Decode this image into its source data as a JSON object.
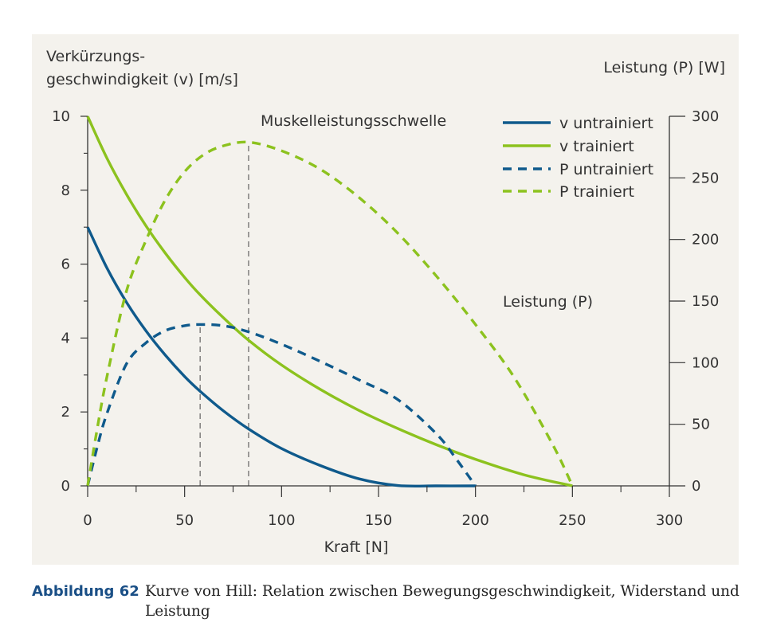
{
  "colors": {
    "untrained": "#0f5a8c",
    "trained": "#8cc21e",
    "axis": "#333333",
    "background": "#f4f2ed",
    "caption_label": "#1a4f86"
  },
  "chart_data": {
    "type": "line",
    "y_left_label_line1": "Verkürzungs-",
    "y_left_label_line2": "geschwindigkeit (v) [m/s]",
    "y_right_label": "Leistung (P) [W]",
    "xlabel": "Kraft [N]",
    "xlim": [
      0,
      300
    ],
    "ylim_left": [
      0,
      10
    ],
    "ylim_right": [
      0,
      300
    ],
    "x_ticks": [
      "0",
      "50",
      "100",
      "150",
      "200",
      "250",
      "300"
    ],
    "y_left_ticks": [
      "0",
      "2",
      "4",
      "6",
      "8",
      "10"
    ],
    "y_right_ticks": [
      "0",
      "50",
      "100",
      "150",
      "200",
      "250",
      "300"
    ],
    "legend_position": "top-right",
    "annotations": {
      "threshold": "Muskelleistungsschwelle",
      "power": "Leistung (P)"
    },
    "thresholds": [
      58,
      83
    ],
    "series": [
      {
        "name": "v untrainiert",
        "axis": "left",
        "style": "solid",
        "color_key": "untrained",
        "x": [
          0,
          10,
          20,
          30,
          40,
          50,
          58,
          70,
          83,
          100,
          120,
          140,
          160,
          180,
          200
        ],
        "y": [
          7.0,
          5.89,
          4.97,
          4.2,
          3.54,
          2.96,
          2.56,
          2.03,
          1.54,
          1.01,
          0.55,
          0.19,
          0.01,
          -0.1,
          0.0
        ]
      },
      {
        "name": "v trainiert",
        "axis": "left",
        "style": "solid",
        "color_key": "trained",
        "x": [
          0,
          10,
          20,
          30,
          40,
          50,
          58,
          70,
          83,
          100,
          120,
          140,
          160,
          180,
          200,
          225,
          250
        ],
        "y": [
          10.0,
          8.86,
          7.89,
          7.04,
          6.3,
          5.64,
          5.17,
          4.55,
          3.94,
          3.27,
          2.61,
          2.04,
          1.55,
          1.11,
          0.72,
          0.3,
          0.0
        ]
      },
      {
        "name": "P untrainiert",
        "axis": "right",
        "style": "dashed",
        "color_key": "untrained",
        "x": [
          0,
          5,
          10,
          20,
          30,
          40,
          50,
          58,
          70,
          83,
          100,
          120,
          140,
          160,
          180,
          190,
          200
        ],
        "y": [
          0,
          32,
          59,
          99,
          116,
          126,
          130,
          131,
          130,
          125,
          115,
          101,
          86,
          70,
          42,
          22,
          0
        ]
      },
      {
        "name": "P trainiert",
        "axis": "right",
        "style": "dashed",
        "color_key": "trained",
        "x": [
          0,
          5,
          10,
          20,
          30,
          40,
          50,
          60,
          70,
          83,
          100,
          120,
          140,
          160,
          180,
          200,
          220,
          240,
          250
        ],
        "y": [
          0,
          47,
          89,
          158,
          199,
          232,
          255,
          269,
          276,
          279,
          272,
          257,
          234,
          205,
          170,
          131,
          88,
          33,
          0
        ]
      }
    ]
  },
  "caption": {
    "label": "Abbildung 62",
    "text": "Kurve von Hill: Relation zwischen Bewegungsgeschwindigkeit, Widerstand und Leistung"
  }
}
